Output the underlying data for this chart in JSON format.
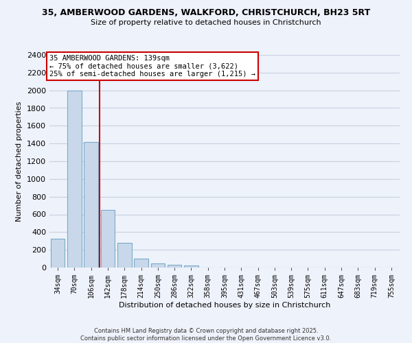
{
  "title_line1": "35, AMBERWOOD GARDENS, WALKFORD, CHRISTCHURCH, BH23 5RT",
  "title_line2": "Size of property relative to detached houses in Christchurch",
  "xlabel": "Distribution of detached houses by size in Christchurch",
  "ylabel": "Number of detached properties",
  "bar_labels": [
    "34sqm",
    "70sqm",
    "106sqm",
    "142sqm",
    "178sqm",
    "214sqm",
    "250sqm",
    "286sqm",
    "322sqm",
    "358sqm",
    "395sqm",
    "431sqm",
    "467sqm",
    "503sqm",
    "539sqm",
    "575sqm",
    "611sqm",
    "647sqm",
    "683sqm",
    "719sqm",
    "755sqm"
  ],
  "bar_values": [
    325,
    2000,
    1420,
    650,
    280,
    100,
    45,
    30,
    20,
    0,
    0,
    0,
    0,
    0,
    0,
    0,
    0,
    0,
    0,
    0,
    0
  ],
  "bar_color": "#c8d8ea",
  "bar_edge_color": "#7aaac8",
  "vline_x": 2.5,
  "vline_color": "#cc0000",
  "ylim": [
    0,
    2400
  ],
  "yticks": [
    0,
    200,
    400,
    600,
    800,
    1000,
    1200,
    1400,
    1600,
    1800,
    2000,
    2200,
    2400
  ],
  "annotation_title": "35 AMBERWOOD GARDENS: 139sqm",
  "annotation_line2": "← 75% of detached houses are smaller (3,622)",
  "annotation_line3": "25% of semi-detached houses are larger (1,215) →",
  "annotation_box_color": "#ffffff",
  "annotation_edge_color": "#cc0000",
  "footer_line1": "Contains HM Land Registry data © Crown copyright and database right 2025.",
  "footer_line2": "Contains public sector information licensed under the Open Government Licence v3.0.",
  "background_color": "#eef2fa",
  "grid_color": "#c8d0e0"
}
